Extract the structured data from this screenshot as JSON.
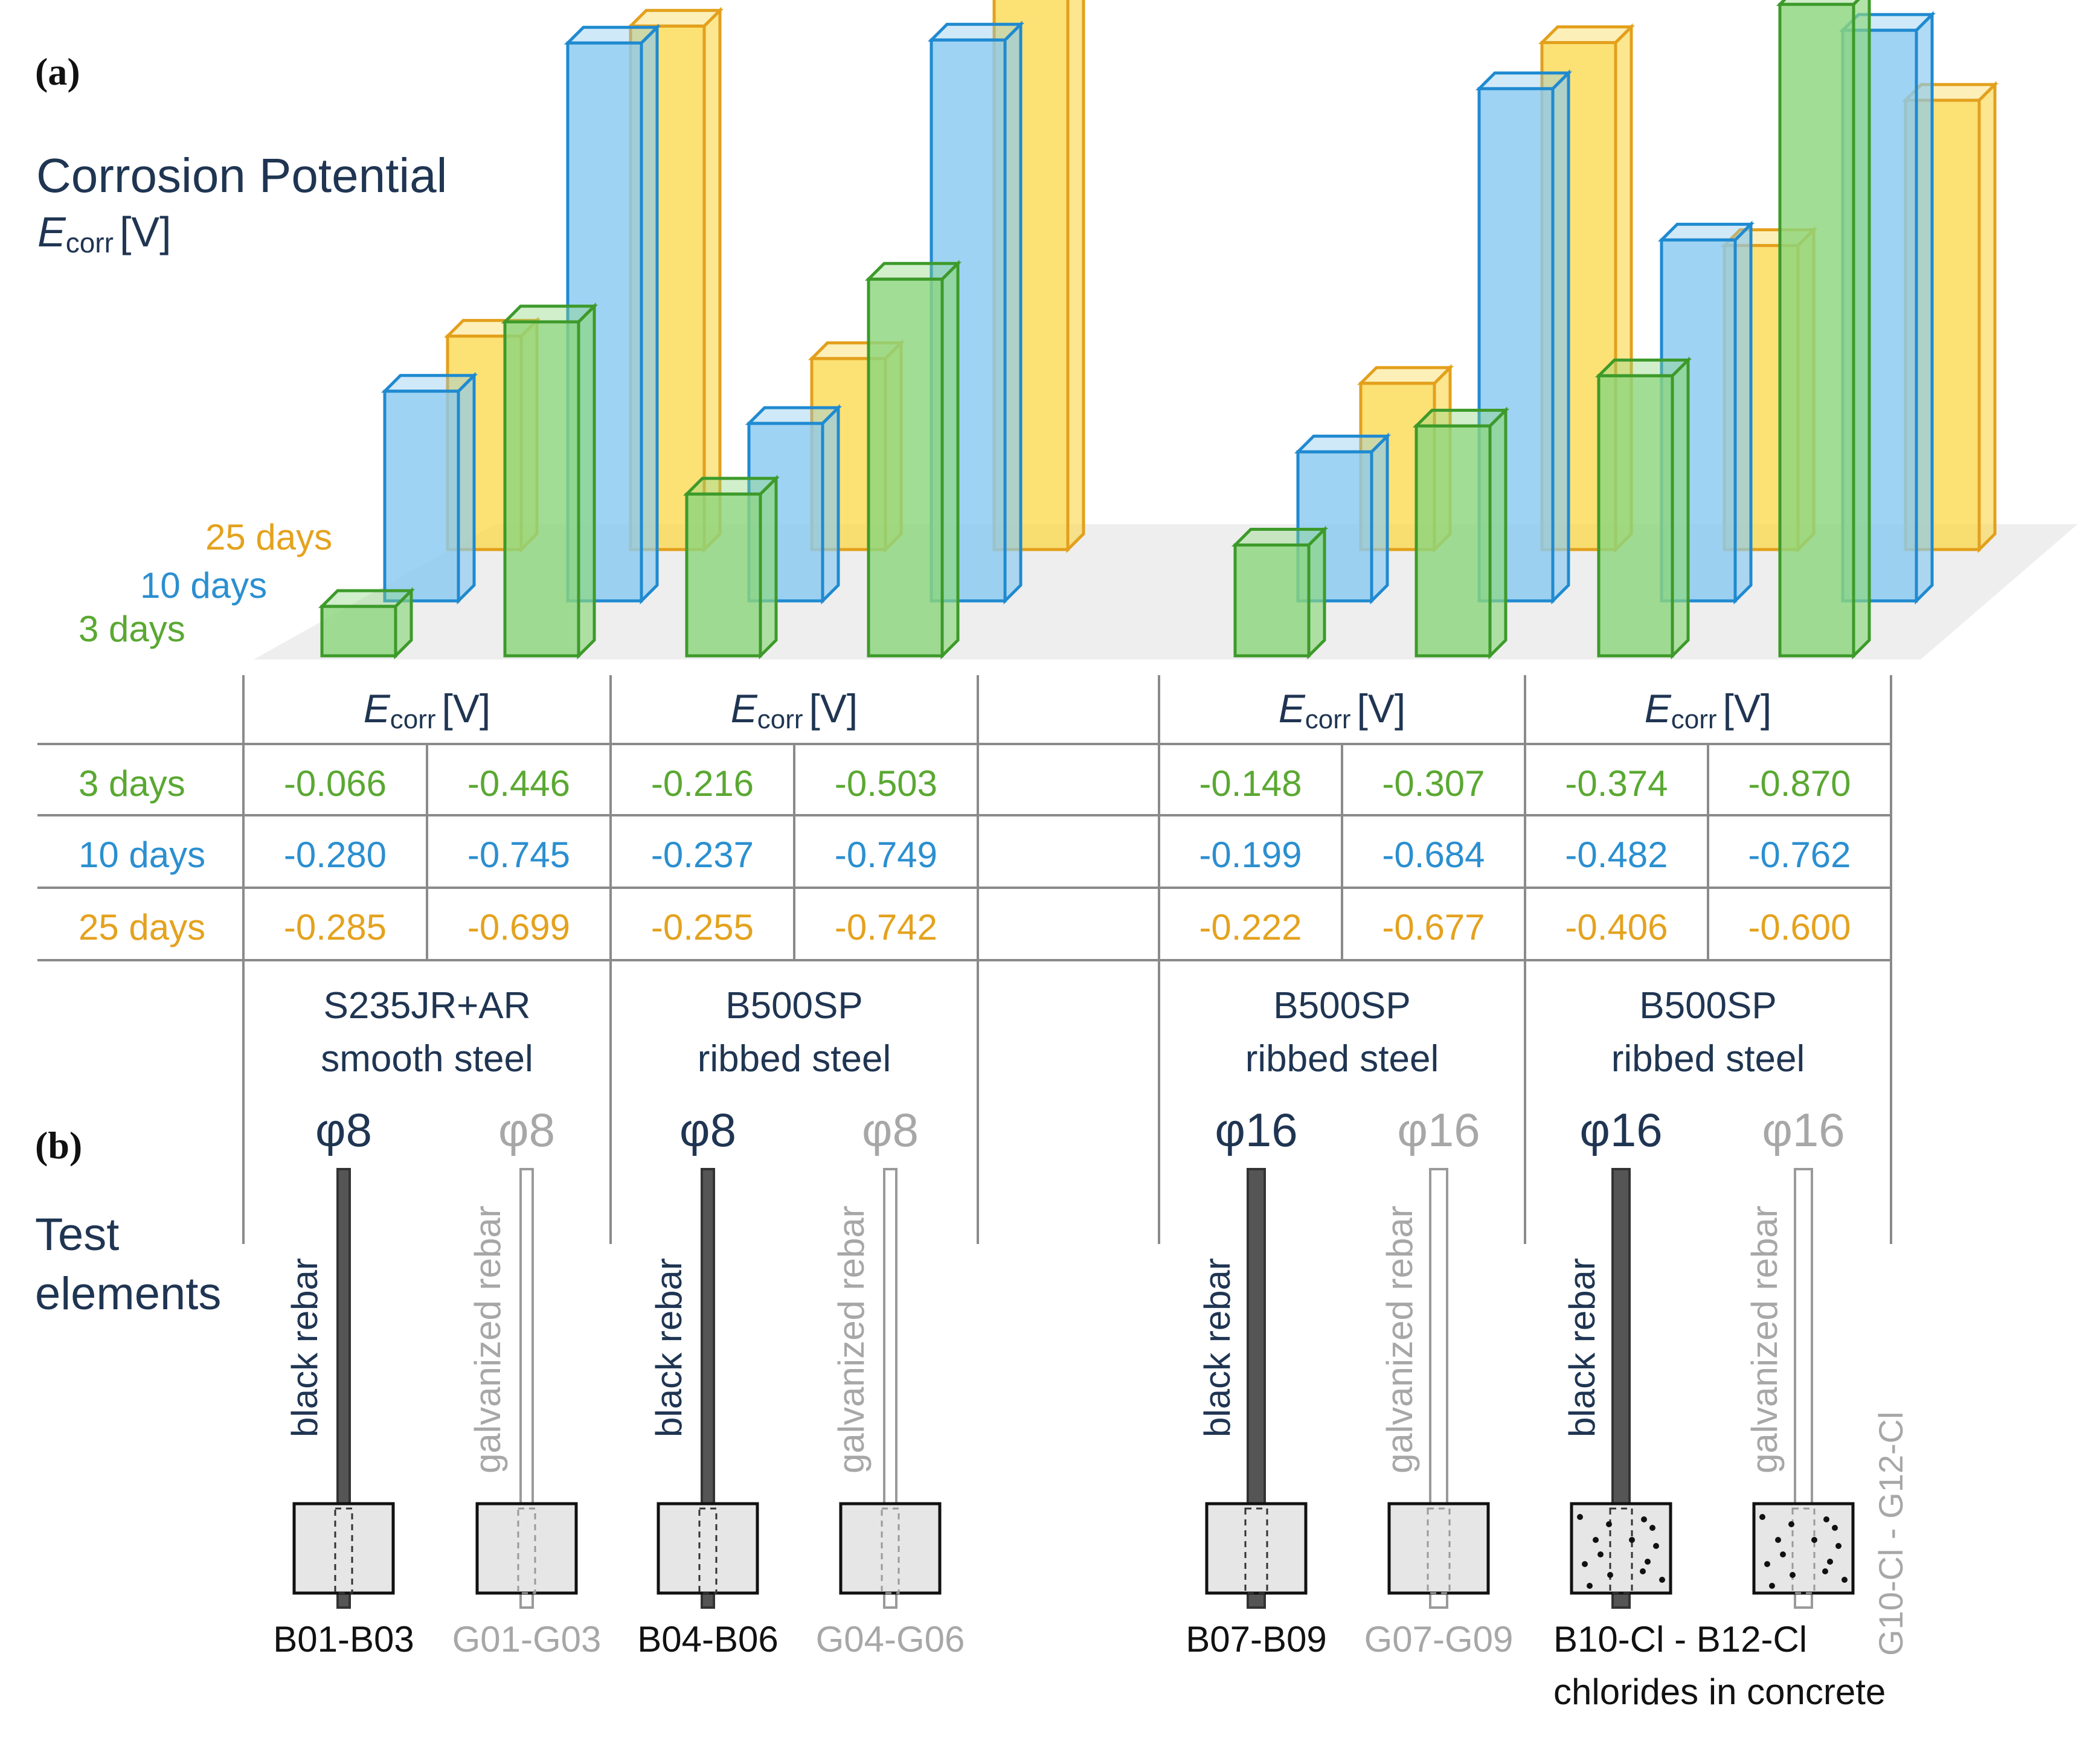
{
  "panel_a_label": "(a)",
  "panel_b_label": "(b)",
  "chart_data": {
    "type": "bar",
    "title": "Corrosion Potential",
    "ylabel": {
      "symbol": "E",
      "subscript": "corr",
      "unit": "[V]"
    },
    "ylim": [
      0,
      -1.0
    ],
    "colors": {
      "3 days": "#5aa832",
      "10 days": "#2b8fd0",
      "25 days": "#e4a21e"
    },
    "legend": [
      "25 days",
      "10 days",
      "3 days"
    ],
    "groups": [
      {
        "header": {
          "symbol": "E",
          "subscript": "corr",
          "unit": "[V]"
        },
        "material": [
          "S235JR+AR",
          "smooth steel"
        ],
        "elements": [
          {
            "diameter": "φ8",
            "tone": "black",
            "vertical_label": "black rebar",
            "code": "B01-B03",
            "values": {
              "3 days": -0.066,
              "10 days": -0.28,
              "25 days": -0.285
            }
          },
          {
            "diameter": "φ8",
            "tone": "galvanized",
            "vertical_label": "galvanized rebar",
            "code": "G01-G03",
            "values": {
              "3 days": -0.446,
              "10 days": -0.745,
              "25 days": -0.699
            }
          }
        ]
      },
      {
        "header": {
          "symbol": "E",
          "subscript": "corr",
          "unit": "[V]"
        },
        "material": [
          "B500SP",
          "ribbed steel"
        ],
        "elements": [
          {
            "diameter": "φ8",
            "tone": "black",
            "vertical_label": "black rebar",
            "code": "B04-B06",
            "values": {
              "3 days": -0.216,
              "10 days": -0.237,
              "25 days": -0.255
            }
          },
          {
            "diameter": "φ8",
            "tone": "galvanized",
            "vertical_label": "galvanized rebar",
            "code": "G04-G06",
            "values": {
              "3 days": -0.503,
              "10 days": -0.749,
              "25 days": -0.742
            }
          }
        ]
      },
      {
        "header": {
          "symbol": "E",
          "subscript": "corr",
          "unit": "[V]"
        },
        "material": [
          "B500SP",
          "ribbed steel"
        ],
        "elements": [
          {
            "diameter": "φ16",
            "tone": "black",
            "vertical_label": "black rebar",
            "code": "B07-B09",
            "values": {
              "3 days": -0.148,
              "10 days": -0.199,
              "25 days": -0.222
            }
          },
          {
            "diameter": "φ16",
            "tone": "galvanized",
            "vertical_label": "galvanized rebar",
            "code": "G07-G09",
            "values": {
              "3 days": -0.307,
              "10 days": -0.684,
              "25 days": -0.677
            }
          }
        ]
      },
      {
        "header": {
          "symbol": "E",
          "subscript": "corr",
          "unit": "[V]"
        },
        "material": [
          "B500SP",
          "ribbed steel"
        ],
        "elements": [
          {
            "diameter": "φ16",
            "tone": "black",
            "vertical_label": "black rebar",
            "code": "B10-Cl - B12-Cl",
            "values": {
              "3 days": -0.374,
              "10 days": -0.482,
              "25 days": -0.406
            }
          },
          {
            "diameter": "φ16",
            "tone": "galvanized",
            "vertical_label": "galvanized rebar",
            "code": "G10-Cl - G12-Cl",
            "values": {
              "3 days": -0.87,
              "10 days": -0.762,
              "25 days": -0.6
            }
          }
        ]
      }
    ],
    "table_rows": [
      "3 days",
      "10 days",
      "25 days"
    ],
    "group3_note": "chlorides in concrete"
  },
  "test_elements_label": [
    "Test",
    "elements"
  ]
}
